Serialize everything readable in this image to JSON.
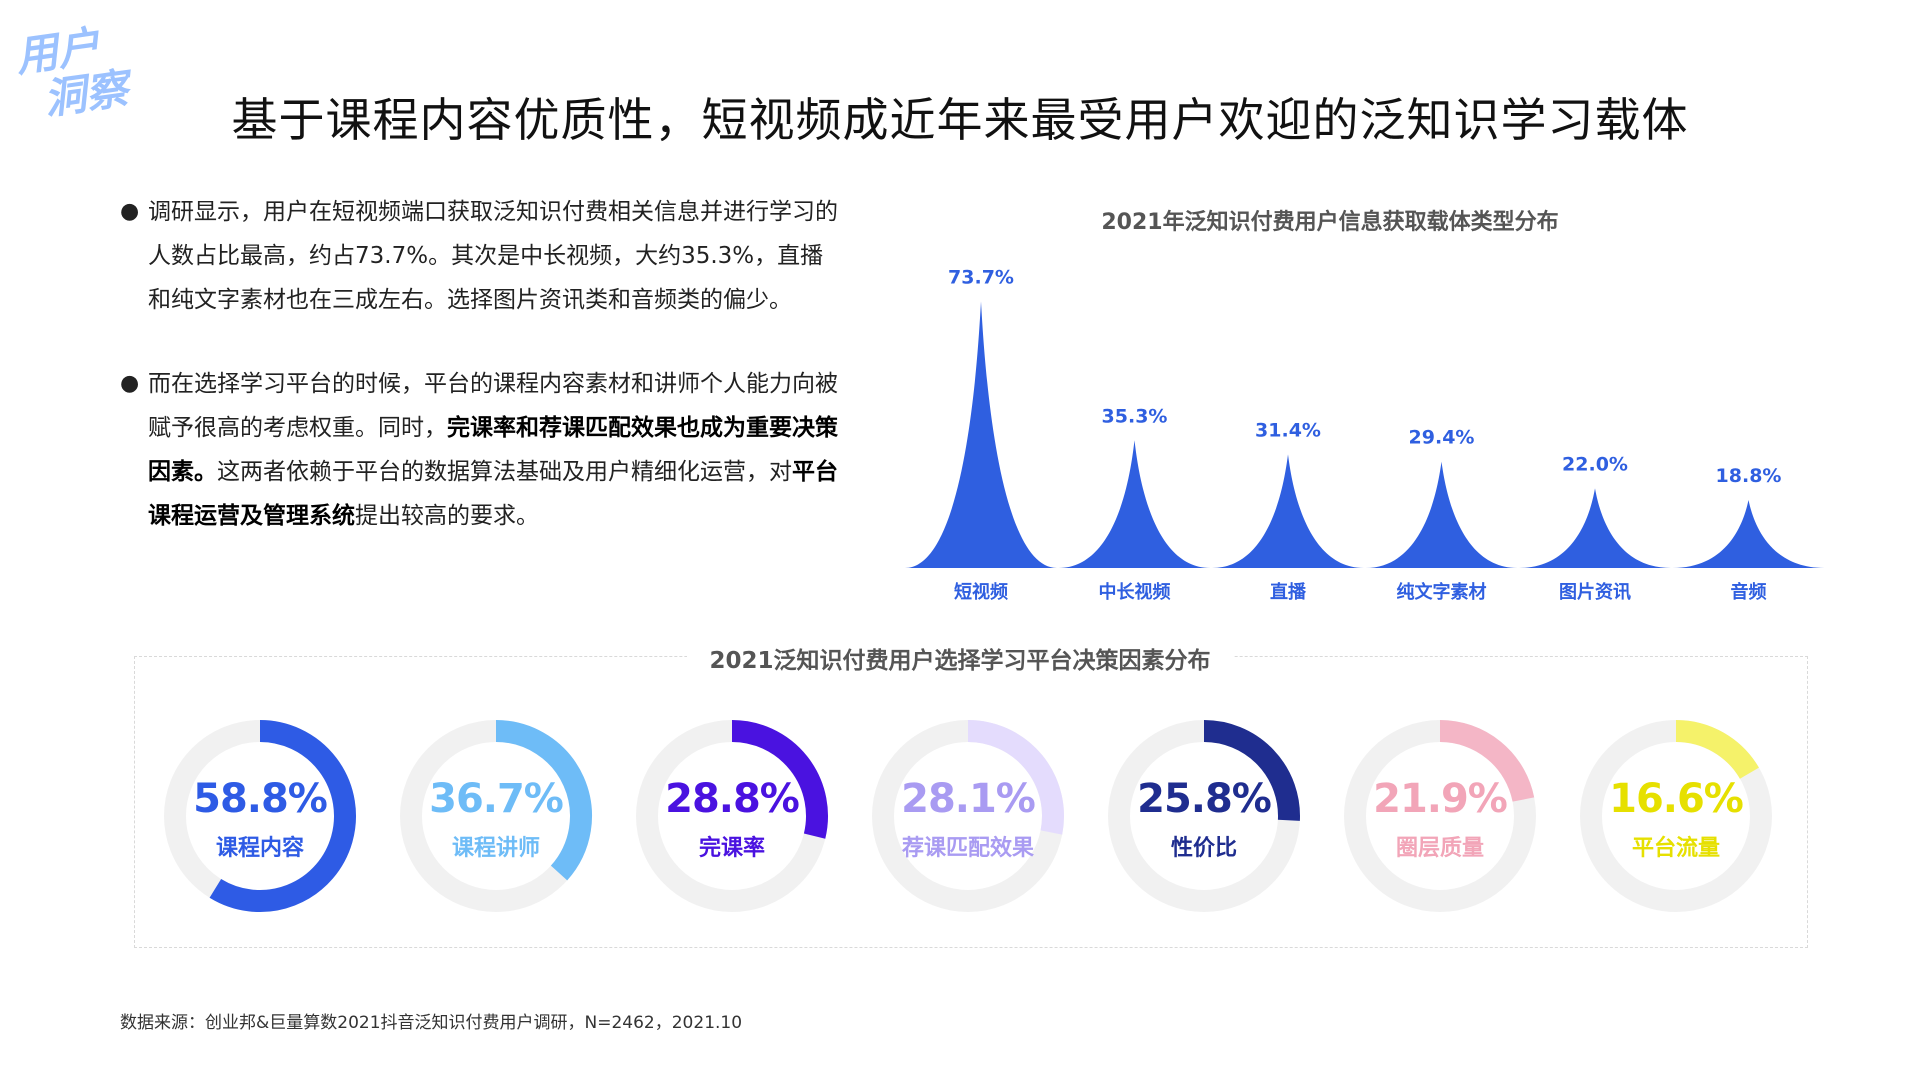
{
  "badge": {
    "line1": "用户",
    "line2": "洞察"
  },
  "title": "基于课程内容优质性，短视频成近年来最受用户欢迎的泛知识学习载体",
  "bullets": {
    "b1": "调研显示，用户在短视频端口获取泛知识付费相关信息并进行学习的人数占比最高，约占73.7%。其次是中长视频，大约35.3%，直播和纯文字素材也在三成左右。选择图片资讯类和音频类的偏少。",
    "b2_part1": "而在选择学习平台的时候，平台的课程内容素材和讲师个人能力向被赋予很高的考虑权重。同时，",
    "b2_bold1": "完课率和荐课匹配效果也成为重要决策因素。",
    "b2_part2": "这两者依赖于平台的数据算法基础及用户精细化运营，对",
    "b2_bold2": "平台课程运营及管理系统",
    "b2_part3": "提出较高的要求。"
  },
  "source": "数据来源：创业邦&巨量算数2021抖音泛知识付费用户调研，N=2462，2021.10",
  "chart_data": [
    {
      "type": "area",
      "title": "2021年泛知识付费用户信息获取载体类型分布",
      "categories": [
        "短视频",
        "中长视频",
        "直播",
        "纯文字素材",
        "图片资讯",
        "音频"
      ],
      "values": [
        73.7,
        35.3,
        31.4,
        29.4,
        22.0,
        18.8
      ],
      "value_labels": [
        "73.7%",
        "35.3%",
        "31.4%",
        "29.4%",
        "22.0%",
        "18.8%"
      ],
      "ylim": [
        0,
        80
      ],
      "color": "#2f5fe0",
      "label_color": "#2f5fe0"
    },
    {
      "type": "pie",
      "title": "2021泛知识付费用户选择学习平台决策因素分布",
      "items": [
        {
          "label": "课程内容",
          "value": 58.8,
          "display": "58.8%",
          "color": "#2e5be5"
        },
        {
          "label": "课程讲师",
          "value": 36.7,
          "display": "36.7%",
          "color": "#6ebcf7"
        },
        {
          "label": "完课率",
          "value": 28.8,
          "display": "28.8%",
          "color": "#4a12e0"
        },
        {
          "label": "荐课匹配效果",
          "value": 28.1,
          "display": "28.1%",
          "color": "#a99bf2",
          "arc_color": "#e4dcfd"
        },
        {
          "label": "性价比",
          "value": 25.8,
          "display": "25.8%",
          "color": "#1f2d8f"
        },
        {
          "label": "圈层质量",
          "value": 21.9,
          "display": "21.9%",
          "color": "#f2a5b8",
          "arc_color": "#f4b6c6"
        },
        {
          "label": "平台流量",
          "value": 16.6,
          "display": "16.6%",
          "color": "#e6e000",
          "arc_color": "#f5f26a"
        }
      ],
      "track_color": "#f1f1f1"
    }
  ]
}
